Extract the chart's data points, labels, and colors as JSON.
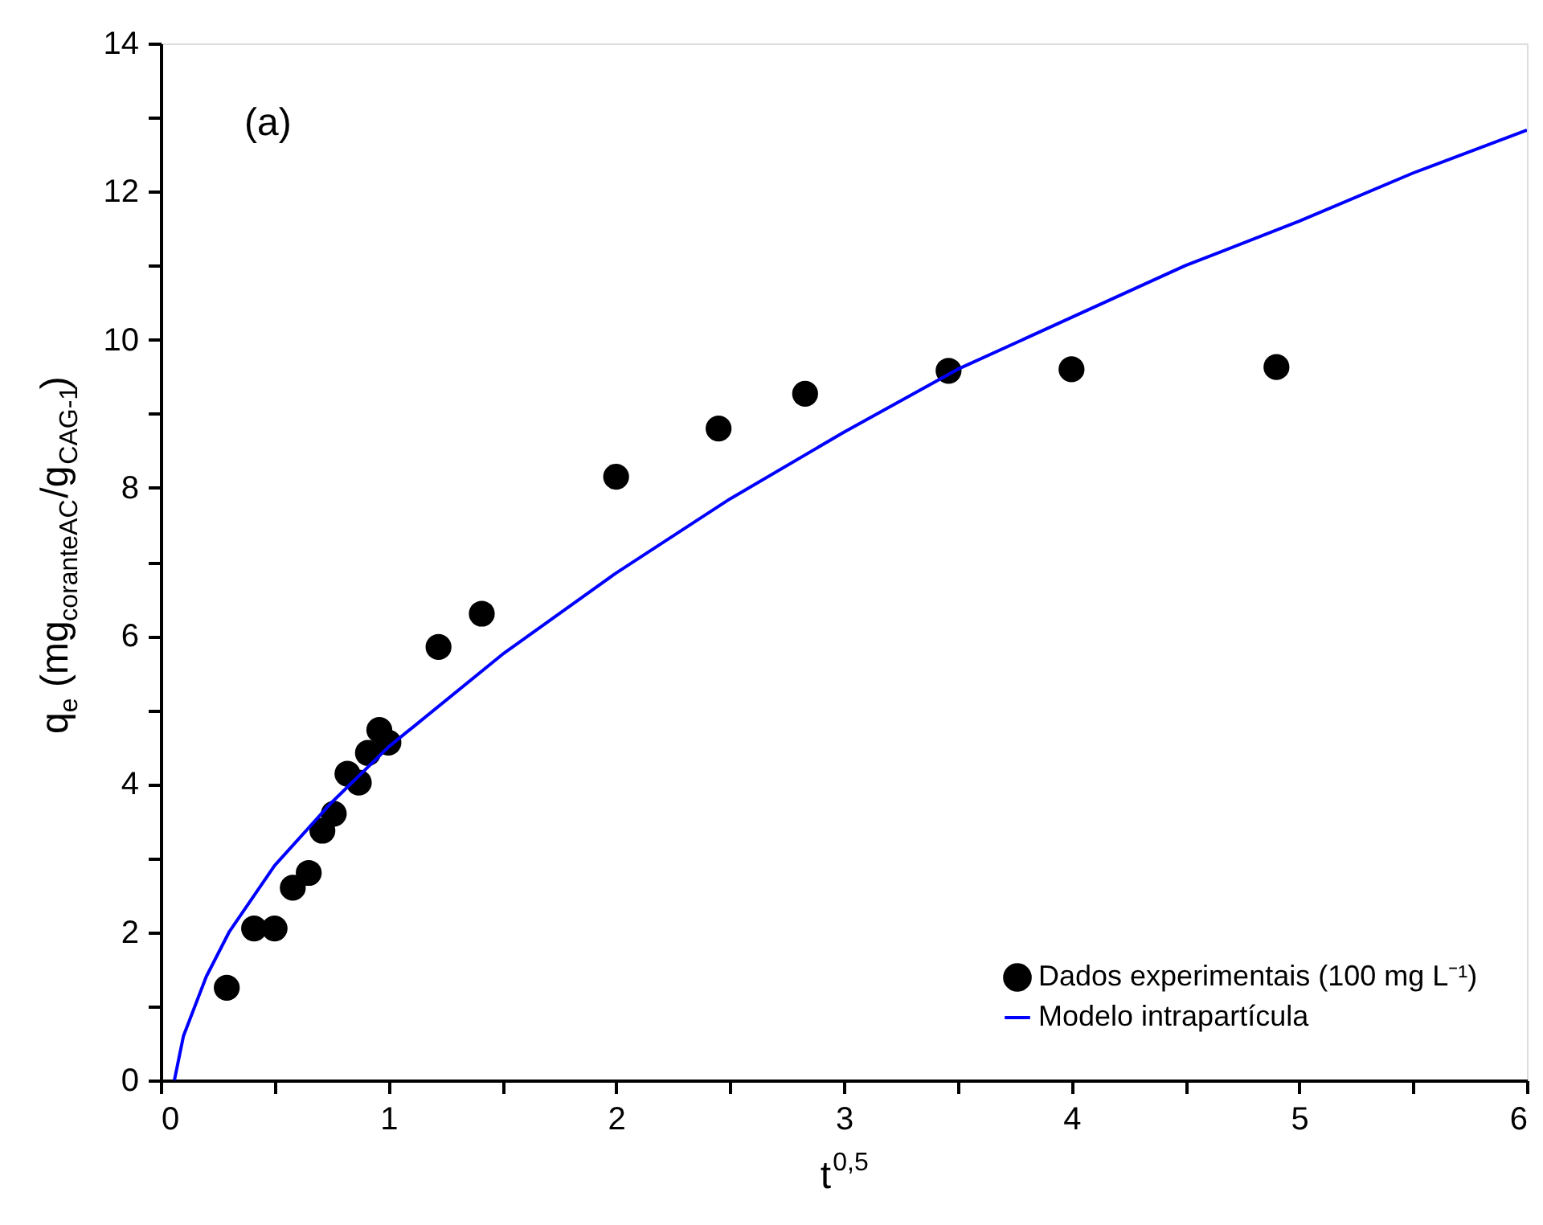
{
  "chart_data": {
    "type": "scatter",
    "xlabel": "t$^{0,5}$",
    "ylabel": "q$_{e}$ (mg$_{coranteAC}$/g$_{CAG-1}$)",
    "annotations": [
      "(a)"
    ],
    "xlim": [
      0,
      6
    ],
    "xticks": [
      0,
      {
        "value": 0.5,
        "label": null
      },
      1,
      {
        "value": 1.5,
        "label": null
      },
      2,
      {
        "value": 2.5,
        "label": null
      },
      3,
      {
        "value": 3.5,
        "label": null
      },
      4,
      {
        "value": 4.5,
        "label": null
      },
      5,
      {
        "value": 5.5,
        "label": null
      },
      6
    ],
    "ylim": [
      0,
      14
    ],
    "yticks": [
      0,
      {
        "value": 1,
        "label": null
      },
      2,
      {
        "value": 3,
        "label": null
      },
      4,
      {
        "value": 5,
        "label": null
      },
      6,
      {
        "value": 7,
        "label": null
      },
      8,
      {
        "value": 9,
        "label": null
      },
      10,
      {
        "value": 11,
        "label": null
      },
      12,
      {
        "value": 13,
        "label": null
      },
      14
    ],
    "grid": false,
    "legend": "bottom right",
    "series": [
      {
        "name": "Dados experimentais (100 mg L⁻¹)",
        "marker": "circle",
        "color": "#000000",
        "x": [
          0.29,
          0.41,
          0.5,
          0.58,
          0.65,
          0.71,
          0.76,
          0.82,
          0.87,
          0.91,
          0.96,
          1.0,
          1.22,
          1.41,
          2.0,
          2.45,
          2.83,
          3.46,
          4.0,
          4.9
        ],
        "values": [
          1.25,
          2.05,
          2.05,
          2.6,
          2.8,
          3.37,
          3.6,
          4.14,
          4.02,
          4.42,
          4.73,
          4.56,
          5.85,
          6.3,
          8.15,
          8.8,
          9.27,
          9.58,
          9.6,
          9.63
        ]
      },
      {
        "name": "Modelo intrapartícula",
        "type": "line",
        "line_style": "solid",
        "color": "#0000ff",
        "x": [
          0.06,
          0.1,
          0.2,
          0.3,
          0.5,
          0.75,
          1.0,
          1.5,
          2.0,
          2.5,
          3.0,
          3.5,
          4.0,
          4.5,
          5.0,
          5.5,
          6.0
        ],
        "values": [
          0,
          0.6,
          1.4,
          2.0,
          2.9,
          3.75,
          4.5,
          5.75,
          6.85,
          7.85,
          8.75,
          9.6,
          10.3,
          11.0,
          11.6,
          12.25,
          12.83
        ]
      }
    ]
  }
}
